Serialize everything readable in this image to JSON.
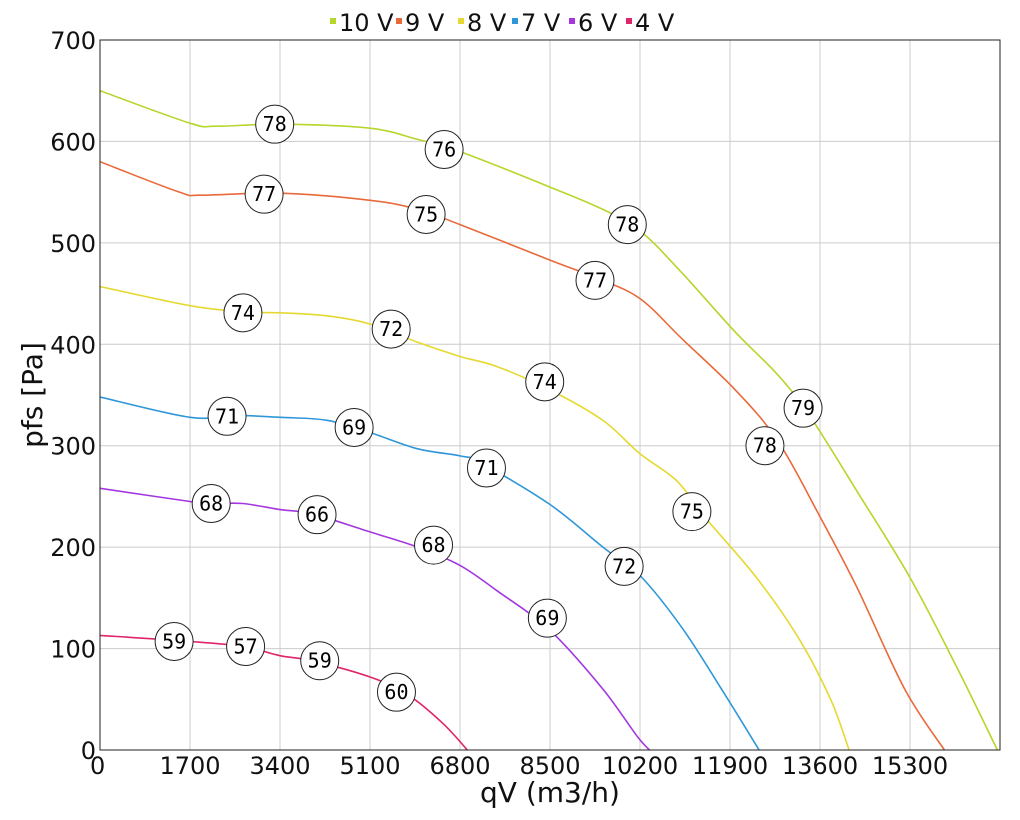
{
  "chart_data": {
    "type": "line",
    "xlabel": "qV (m3/h)",
    "ylabel": "pfs [Pa]",
    "xlim": [
      0,
      17000
    ],
    "ylim": [
      0,
      700
    ],
    "x_ticks": [
      0,
      1700,
      3400,
      5100,
      6800,
      8500,
      10200,
      11900,
      13600,
      15300
    ],
    "y_ticks": [
      0,
      100,
      200,
      300,
      400,
      500,
      600,
      700
    ],
    "grid": true,
    "legend_position": "top",
    "series": [
      {
        "name": "10 V",
        "color": "#b5d62a",
        "points": [
          [
            0,
            650
          ],
          [
            1700,
            618
          ],
          [
            2200,
            615
          ],
          [
            3400,
            617
          ],
          [
            5100,
            613
          ],
          [
            6000,
            602
          ],
          [
            6800,
            590
          ],
          [
            8500,
            555
          ],
          [
            9500,
            533
          ],
          [
            10200,
            512
          ],
          [
            11000,
            470
          ],
          [
            12000,
            412
          ],
          [
            12800,
            370
          ],
          [
            13400,
            330
          ],
          [
            14300,
            255
          ],
          [
            15300,
            170
          ],
          [
            16200,
            80
          ],
          [
            16950,
            0
          ]
        ],
        "labels": [
          {
            "x": 3300,
            "y": 617,
            "text": "78"
          },
          {
            "x": 6500,
            "y": 592,
            "text": "76"
          },
          {
            "x": 9960,
            "y": 518,
            "text": "78"
          },
          {
            "x": 13280,
            "y": 337,
            "text": "79"
          }
        ]
      },
      {
        "name": "9 V",
        "color": "#e86a3a",
        "points": [
          [
            0,
            580
          ],
          [
            1500,
            550
          ],
          [
            1900,
            547
          ],
          [
            3400,
            549
          ],
          [
            5100,
            542
          ],
          [
            6000,
            533
          ],
          [
            6800,
            518
          ],
          [
            8500,
            483
          ],
          [
            9400,
            465
          ],
          [
            10200,
            445
          ],
          [
            11000,
            405
          ],
          [
            12000,
            355
          ],
          [
            12800,
            305
          ],
          [
            13600,
            230
          ],
          [
            14300,
            160
          ],
          [
            15200,
            60
          ],
          [
            15950,
            0
          ]
        ],
        "labels": [
          {
            "x": 3100,
            "y": 548,
            "text": "77"
          },
          {
            "x": 6160,
            "y": 528,
            "text": "75"
          },
          {
            "x": 9350,
            "y": 463,
            "text": "77"
          },
          {
            "x": 12560,
            "y": 300,
            "text": "78"
          }
        ]
      },
      {
        "name": "8 V",
        "color": "#e5d930",
        "points": [
          [
            0,
            457
          ],
          [
            1700,
            438
          ],
          [
            2700,
            432
          ],
          [
            3400,
            431
          ],
          [
            4300,
            428
          ],
          [
            5100,
            420
          ],
          [
            6000,
            402
          ],
          [
            6800,
            388
          ],
          [
            7500,
            378
          ],
          [
            8500,
            355
          ],
          [
            9500,
            325
          ],
          [
            10200,
            292
          ],
          [
            10900,
            265
          ],
          [
            11500,
            225
          ],
          [
            12400,
            170
          ],
          [
            13200,
            110
          ],
          [
            13800,
            50
          ],
          [
            14150,
            0
          ]
        ],
        "labels": [
          {
            "x": 2700,
            "y": 431,
            "text": "74"
          },
          {
            "x": 5500,
            "y": 415,
            "text": "72"
          },
          {
            "x": 8400,
            "y": 363,
            "text": "74"
          },
          {
            "x": 11180,
            "y": 235,
            "text": "75"
          }
        ]
      },
      {
        "name": "7 V",
        "color": "#2f97d9",
        "points": [
          [
            0,
            348
          ],
          [
            1700,
            328
          ],
          [
            2500,
            330
          ],
          [
            3400,
            328
          ],
          [
            4300,
            325
          ],
          [
            5100,
            313
          ],
          [
            6000,
            297
          ],
          [
            6800,
            290
          ],
          [
            7200,
            283
          ],
          [
            8500,
            242
          ],
          [
            9500,
            200
          ],
          [
            10200,
            172
          ],
          [
            11000,
            120
          ],
          [
            11800,
            55
          ],
          [
            12450,
            0
          ]
        ],
        "labels": [
          {
            "x": 2400,
            "y": 329,
            "text": "71"
          },
          {
            "x": 4800,
            "y": 318,
            "text": "69"
          },
          {
            "x": 7300,
            "y": 278,
            "text": "71"
          },
          {
            "x": 9900,
            "y": 181,
            "text": "72"
          }
        ]
      },
      {
        "name": "6 V",
        "color": "#a437e0",
        "points": [
          [
            0,
            258
          ],
          [
            1700,
            245
          ],
          [
            2100,
            243
          ],
          [
            2700,
            243
          ],
          [
            3400,
            237
          ],
          [
            4000,
            233
          ],
          [
            5100,
            215
          ],
          [
            6000,
            200
          ],
          [
            6800,
            182
          ],
          [
            7500,
            157
          ],
          [
            8500,
            118
          ],
          [
            9500,
            60
          ],
          [
            10200,
            10
          ],
          [
            10600,
            -10
          ]
        ],
        "labels": [
          {
            "x": 2100,
            "y": 243,
            "text": "68"
          },
          {
            "x": 4100,
            "y": 232,
            "text": "66"
          },
          {
            "x": 6300,
            "y": 202,
            "text": "68"
          },
          {
            "x": 8450,
            "y": 130,
            "text": "69"
          }
        ]
      },
      {
        "name": "4 V",
        "color": "#e0246a",
        "points": [
          [
            0,
            113
          ],
          [
            1700,
            107
          ],
          [
            2700,
            102
          ],
          [
            3400,
            93
          ],
          [
            4000,
            88
          ],
          [
            5100,
            72
          ],
          [
            5800,
            55
          ],
          [
            6500,
            25
          ],
          [
            7100,
            -10
          ]
        ],
        "labels": [
          {
            "x": 1400,
            "y": 107,
            "text": "59"
          },
          {
            "x": 2750,
            "y": 102,
            "text": "57"
          },
          {
            "x": 4150,
            "y": 88,
            "text": "59"
          },
          {
            "x": 5600,
            "y": 57,
            "text": "60"
          }
        ]
      }
    ]
  }
}
